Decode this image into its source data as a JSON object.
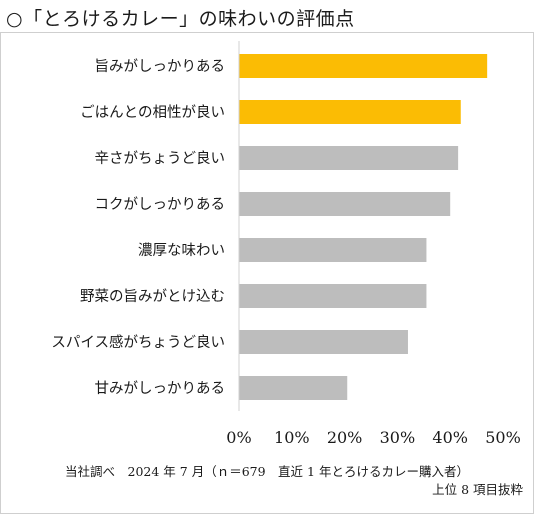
{
  "title": "○「とろけるカレー」の味わいの評価点",
  "chart_data": {
    "type": "bar",
    "orientation": "horizontal",
    "categories": [
      "旨みがしっかりある",
      "ごはんとの相性が良い",
      "辛さがちょうど良い",
      "コクがしっかりある",
      "濃厚な味わい",
      "野菜の旨みがとけ込む",
      "スパイス感がちょうど良い",
      "甘みがしっかりある"
    ],
    "values": [
      0.47,
      0.42,
      0.415,
      0.4,
      0.355,
      0.355,
      0.32,
      0.205
    ],
    "highlight_count": 2,
    "colors": {
      "highlight": "#FBBC04",
      "default": "#BDBDBD"
    },
    "xlim": [
      0,
      0.5
    ],
    "xticks": [
      "0%",
      "10%",
      "20%",
      "30%",
      "40%",
      "50%"
    ],
    "grid": false
  },
  "footnote": {
    "source": "当社調べ　2024 年 7 月（ｎ＝679　直近 1 年とろけるカレー購入者）",
    "note": "上位 8 項目抜粋"
  }
}
